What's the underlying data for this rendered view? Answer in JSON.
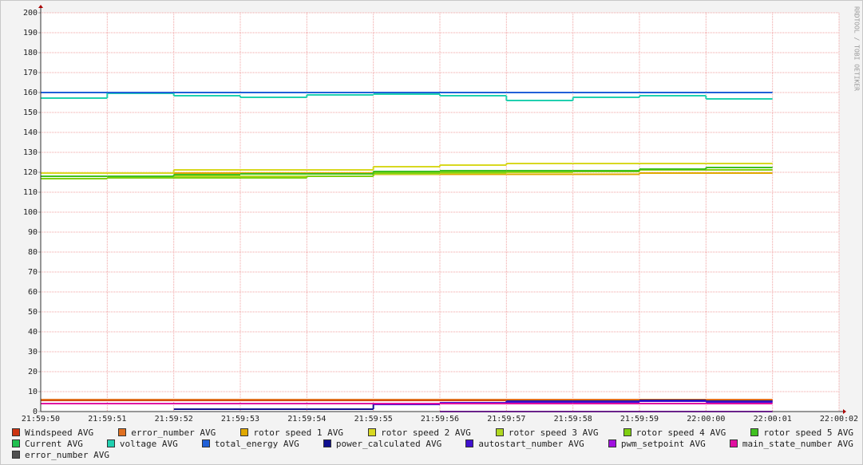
{
  "chart_data": {
    "type": "step-line",
    "watermark": "RRDTOOL / TOBI OETIKER",
    "xticks": [
      "21:59:50",
      "21:59:51",
      "21:59:52",
      "21:59:53",
      "21:59:54",
      "21:59:55",
      "21:59:56",
      "21:59:57",
      "21:59:58",
      "21:59:59",
      "22:00:00",
      "22:00:01",
      "22:00:02"
    ],
    "x": [
      "21:59:51",
      "21:59:52",
      "21:59:53",
      "21:59:54",
      "21:59:55",
      "21:59:56",
      "21:59:57",
      "21:59:58",
      "21:59:59",
      "22:00:00",
      "22:00:01"
    ],
    "ylim": [
      0,
      200
    ],
    "yticks": [
      0,
      10,
      20,
      30,
      40,
      50,
      60,
      70,
      80,
      90,
      100,
      110,
      120,
      130,
      140,
      150,
      160,
      170,
      180,
      190,
      200
    ],
    "grid": true,
    "series": [
      {
        "name": "Windspeed AVG",
        "color": "#cc3311",
        "values": [
          5.6,
          5.6,
          5.6,
          5.6,
          5.6,
          5.6,
          5.6,
          5.6,
          5.6,
          5.6,
          5.6
        ]
      },
      {
        "name": "error_number AVG",
        "color": "#e07020",
        "values": [
          6,
          6,
          6,
          6,
          6,
          6,
          6,
          6,
          6,
          6,
          6
        ]
      },
      {
        "name": "rotor speed 1 AVG",
        "color": "#e0a800",
        "values": [
          119.6,
          119.6,
          119.6,
          119.6,
          119.6,
          119,
          119,
          119,
          119,
          119.6,
          119.6
        ]
      },
      {
        "name": "rotor speed 2 AVG",
        "color": "#d8d820",
        "values": [
          119.6,
          119.6,
          121.2,
          121.2,
          121.2,
          122.8,
          123.6,
          124.4,
          124.4,
          124.4,
          124.4
        ]
      },
      {
        "name": "rotor speed 3 AVG",
        "color": "#b0d820",
        "values": [
          116.8,
          117.2,
          118,
          118,
          118,
          119.2,
          119.6,
          120,
          120.4,
          121.6,
          122.4
        ]
      },
      {
        "name": "rotor speed 4 AVG",
        "color": "#80d010",
        "values": [
          116.8,
          117.2,
          117.2,
          117.2,
          118,
          119.6,
          120,
          120.4,
          120.4,
          121.2,
          121.2
        ]
      },
      {
        "name": "rotor speed 5 AVG",
        "color": "#40c020",
        "values": [
          118,
          118,
          118.8,
          119.2,
          119.2,
          120.4,
          120.8,
          120.8,
          120.8,
          121.6,
          122.4
        ]
      },
      {
        "name": "Current AVG",
        "color": "#20c050",
        "values": [
          null,
          null,
          null,
          null,
          null,
          null,
          null,
          null,
          null,
          null,
          null
        ]
      },
      {
        "name": "voltage AVG",
        "color": "#20d0b0",
        "values": [
          157.2,
          159.6,
          158.4,
          157.6,
          158.8,
          159.2,
          158.4,
          156,
          157.6,
          158.4,
          156.8
        ]
      },
      {
        "name": "total_energy AVG",
        "color": "#2060d8",
        "values": [
          160,
          160,
          160,
          160,
          160,
          160,
          160,
          160,
          160,
          160,
          160
        ]
      },
      {
        "name": "power_calculated AVG",
        "color": "#101090",
        "values": [
          null,
          null,
          1.2,
          1.2,
          1.2,
          3.6,
          4,
          5.2,
          5.2,
          5.6,
          5.2
        ]
      },
      {
        "name": "autostart_number AVG",
        "color": "#4010d0",
        "values": [
          4,
          4,
          4,
          4,
          4,
          3.6,
          4.4,
          4.8,
          4.8,
          5.2,
          4.8
        ]
      },
      {
        "name": "pwm_setpoint AVG",
        "color": "#a010e0",
        "values": [
          null,
          null,
          null,
          null,
          null,
          null,
          0,
          0,
          0,
          0,
          0
        ]
      },
      {
        "name": "main_state_number AVG",
        "color": "#e010a0",
        "values": [
          4,
          4,
          4,
          4,
          4,
          4,
          4,
          4,
          4,
          4,
          4
        ]
      },
      {
        "name": "error_number AVG",
        "color": "#505050",
        "values": [
          null,
          null,
          null,
          null,
          null,
          null,
          null,
          null,
          null,
          null,
          null
        ]
      }
    ]
  }
}
